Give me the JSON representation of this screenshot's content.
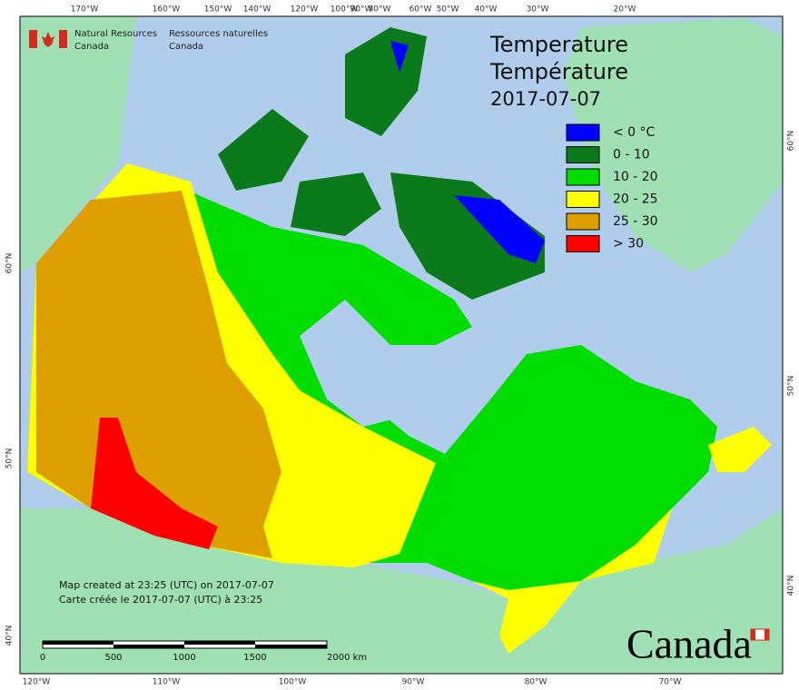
{
  "header": {
    "department_en": [
      "Natural Resources",
      "Canada"
    ],
    "department_fr": [
      "Ressources naturelles",
      "Canada"
    ]
  },
  "title": [
    "Temperature",
    "Température",
    "2017-07-07"
  ],
  "legend": [
    {
      "label": "< 0 °C",
      "color": "#0000ff"
    },
    {
      "label": "0 - 10",
      "color": "#0a7a1a"
    },
    {
      "label": "10 - 20",
      "color": "#00dd00"
    },
    {
      "label": "20 - 25",
      "color": "#ffff00"
    },
    {
      "label": "25 - 30",
      "color": "#dda000"
    },
    {
      "label": "> 30",
      "color": "#ff0000"
    }
  ],
  "graticule": {
    "top": [
      "170°W",
      "160°W",
      "150°W",
      "140°W",
      "120°W",
      "100°W",
      "90°W",
      "80°W",
      "60°W",
      "50°W",
      "40°W",
      "30°W",
      "20°W"
    ],
    "bottom": [
      "120°W",
      "110°W",
      "100°W",
      "90°W",
      "80°W",
      "70°W"
    ],
    "left": [
      "60°N",
      "50°N",
      "40°N"
    ],
    "right": [
      "60°N",
      "50°N",
      "40°N"
    ]
  },
  "notes": [
    "Map created at 23:25 (UTC) on 2017-07-07",
    "Carte créée le 2017-07-07 (UTC) à 23:25"
  ],
  "scale_bar": [
    "0",
    "500",
    "1000",
    "1500",
    "2000 km"
  ],
  "wordmark": "Canada"
}
